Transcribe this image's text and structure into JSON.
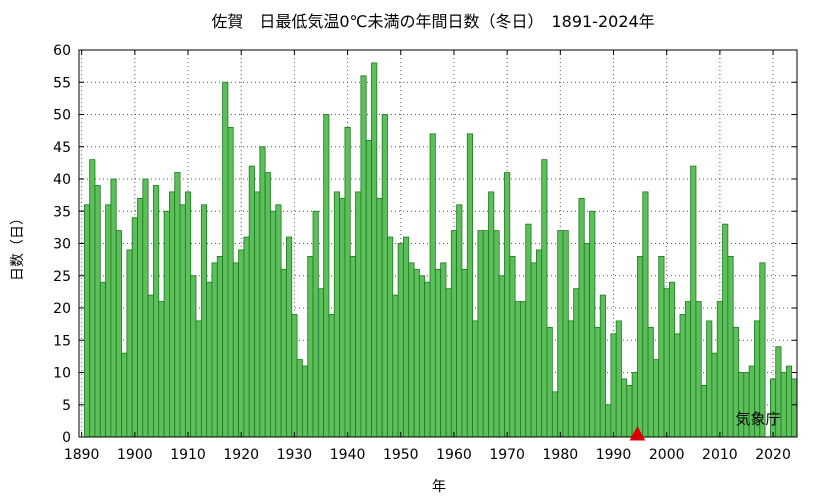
{
  "chart_data": {
    "type": "bar",
    "title": "佐賀　日最低気温0℃未満の年間日数（冬日）　1891-2024年",
    "xlabel": "年",
    "ylabel": "日数（日）",
    "credit": "気象庁",
    "xlim": [
      1889.5,
      2024.5
    ],
    "ylim": [
      0,
      60
    ],
    "yticks": [
      0,
      5,
      10,
      15,
      20,
      25,
      30,
      35,
      40,
      45,
      50,
      55,
      60
    ],
    "xticks": [
      1890,
      1900,
      1910,
      1920,
      1930,
      1940,
      1950,
      1960,
      1970,
      1980,
      1990,
      2000,
      2010,
      2020
    ],
    "grid": true,
    "bar_color": "#5cbf5c",
    "bar_edge_color": "#1a7a1a",
    "marker": {
      "year": 1994.5,
      "value": 0,
      "shape": "triangle",
      "color": "#dd0000"
    },
    "start_year": 1891,
    "values": [
      36,
      43,
      39,
      24,
      36,
      40,
      32,
      13,
      29,
      34,
      37,
      40,
      22,
      39,
      21,
      35,
      38,
      41,
      36,
      38,
      25,
      18,
      36,
      24,
      27,
      28,
      55,
      48,
      27,
      29,
      31,
      42,
      38,
      45,
      41,
      35,
      36,
      26,
      31,
      19,
      12,
      11,
      28,
      35,
      23,
      50,
      19,
      38,
      37,
      48,
      28,
      38,
      56,
      46,
      58,
      37,
      50,
      31,
      22,
      30,
      31,
      27,
      26,
      25,
      24,
      47,
      26,
      27,
      23,
      32,
      36,
      26,
      47,
      18,
      32,
      32,
      38,
      32,
      25,
      41,
      28,
      21,
      21,
      33,
      27,
      29,
      43,
      17,
      7,
      32,
      32,
      18,
      23,
      37,
      30,
      35,
      17,
      22,
      5,
      16,
      18,
      9,
      8,
      10,
      28,
      38,
      17,
      12,
      28,
      23,
      24,
      16,
      19,
      21,
      42,
      21,
      8,
      18,
      13,
      21,
      33,
      28,
      17,
      10,
      10,
      11,
      18,
      27,
      0,
      9,
      14,
      10,
      11,
      9
    ]
  }
}
